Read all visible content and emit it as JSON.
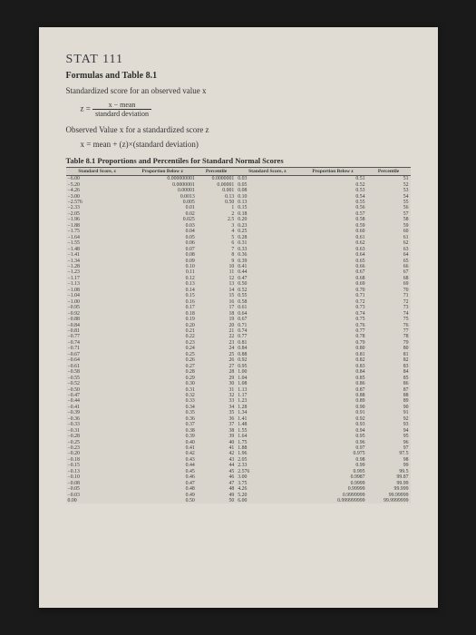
{
  "handwritten": "STAT  111",
  "title": "Formulas and Table 8.1",
  "line_std": "Standardized score for an observed value x",
  "formula1": {
    "lhs": "z =",
    "num": "x − mean",
    "den": "standard deviation"
  },
  "line_obs": "Observed Value x for a standardized score z",
  "formula2": "x = mean + (z)×(standard deviation)",
  "table_caption": "Table 8.1   Proportions and Percentiles for Standard Normal Scores",
  "headers": [
    "Standard Score, z",
    "Proportion Below z",
    "Percentile",
    "Standard Score, z",
    "Proportion Below z",
    "Percentile"
  ],
  "rows": [
    [
      "−6.00",
      "0.000000001",
      "0.0000001",
      "0.03",
      "0.51",
      "51"
    ],
    [
      "−5.20",
      "0.0000001",
      "0.00001",
      "0.05",
      "0.52",
      "52"
    ],
    [
      "−4.26",
      "0.00001",
      "0.001",
      "0.08",
      "0.53",
      "53"
    ],
    [
      "−3.00",
      "0.0013",
      "0.13",
      "0.10",
      "0.54",
      "54"
    ],
    [
      "−2.576",
      "0.005",
      "0.50",
      "0.13",
      "0.55",
      "55"
    ],
    [
      "−2.33",
      "0.01",
      "1",
      "0.15",
      "0.56",
      "56"
    ],
    [
      "−2.05",
      "0.02",
      "2",
      "0.18",
      "0.57",
      "57"
    ],
    [
      "−1.96",
      "0.025",
      "2.5",
      "0.20",
      "0.58",
      "58"
    ],
    [
      "−1.88",
      "0.03",
      "3",
      "0.23",
      "0.59",
      "59"
    ],
    [
      "−1.75",
      "0.04",
      "4",
      "0.25",
      "0.60",
      "60"
    ],
    [
      "−1.64",
      "0.05",
      "5",
      "0.28",
      "0.61",
      "61"
    ],
    [
      "−1.55",
      "0.06",
      "6",
      "0.31",
      "0.62",
      "62"
    ],
    [
      "−1.48",
      "0.07",
      "7",
      "0.33",
      "0.63",
      "63"
    ],
    [
      "−1.41",
      "0.08",
      "8",
      "0.36",
      "0.64",
      "64"
    ],
    [
      "−1.34",
      "0.09",
      "9",
      "0.39",
      "0.65",
      "65"
    ],
    [
      "−1.28",
      "0.10",
      "10",
      "0.41",
      "0.66",
      "66"
    ],
    [
      "−1.23",
      "0.11",
      "11",
      "0.44",
      "0.67",
      "67"
    ],
    [
      "−1.17",
      "0.12",
      "12",
      "0.47",
      "0.68",
      "68"
    ],
    [
      "−1.13",
      "0.13",
      "13",
      "0.50",
      "0.69",
      "69"
    ],
    [
      "−1.08",
      "0.14",
      "14",
      "0.52",
      "0.70",
      "70"
    ],
    [
      "−1.04",
      "0.15",
      "15",
      "0.55",
      "0.71",
      "71"
    ],
    [
      "−1.00",
      "0.16",
      "16",
      "0.58",
      "0.72",
      "72"
    ],
    [
      "−0.95",
      "0.17",
      "17",
      "0.61",
      "0.73",
      "73"
    ],
    [
      "−0.92",
      "0.18",
      "18",
      "0.64",
      "0.74",
      "74"
    ],
    [
      "−0.88",
      "0.19",
      "19",
      "0.67",
      "0.75",
      "75"
    ],
    [
      "−0.84",
      "0.20",
      "20",
      "0.71",
      "0.76",
      "76"
    ],
    [
      "−0.81",
      "0.21",
      "21",
      "0.74",
      "0.77",
      "77"
    ],
    [
      "−0.77",
      "0.22",
      "22",
      "0.77",
      "0.78",
      "78"
    ],
    [
      "−0.74",
      "0.23",
      "23",
      "0.81",
      "0.79",
      "79"
    ],
    [
      "−0.71",
      "0.24",
      "24",
      "0.84",
      "0.80",
      "80"
    ],
    [
      "−0.67",
      "0.25",
      "25",
      "0.88",
      "0.81",
      "81"
    ],
    [
      "−0.64",
      "0.26",
      "26",
      "0.92",
      "0.82",
      "82"
    ],
    [
      "−0.61",
      "0.27",
      "27",
      "0.95",
      "0.83",
      "83"
    ],
    [
      "−0.58",
      "0.28",
      "28",
      "1.00",
      "0.84",
      "84"
    ],
    [
      "−0.55",
      "0.29",
      "29",
      "1.04",
      "0.85",
      "85"
    ],
    [
      "−0.52",
      "0.30",
      "30",
      "1.08",
      "0.86",
      "86"
    ],
    [
      "−0.50",
      "0.31",
      "31",
      "1.13",
      "0.87",
      "87"
    ],
    [
      "−0.47",
      "0.32",
      "32",
      "1.17",
      "0.88",
      "88"
    ],
    [
      "−0.44",
      "0.33",
      "33",
      "1.23",
      "0.89",
      "89"
    ],
    [
      "−0.41",
      "0.34",
      "34",
      "1.28",
      "0.90",
      "90"
    ],
    [
      "−0.39",
      "0.35",
      "35",
      "1.34",
      "0.91",
      "91"
    ],
    [
      "−0.36",
      "0.36",
      "36",
      "1.41",
      "0.92",
      "92"
    ],
    [
      "−0.33",
      "0.37",
      "37",
      "1.48",
      "0.93",
      "93"
    ],
    [
      "−0.31",
      "0.38",
      "38",
      "1.55",
      "0.94",
      "94"
    ],
    [
      "−0.28",
      "0.39",
      "39",
      "1.64",
      "0.95",
      "95"
    ],
    [
      "−0.25",
      "0.40",
      "40",
      "1.75",
      "0.96",
      "96"
    ],
    [
      "−0.23",
      "0.41",
      "41",
      "1.88",
      "0.97",
      "97"
    ],
    [
      "−0.20",
      "0.42",
      "42",
      "1.96",
      "0.975",
      "97.5"
    ],
    [
      "−0.18",
      "0.43",
      "43",
      "2.05",
      "0.98",
      "98"
    ],
    [
      "−0.15",
      "0.44",
      "44",
      "2.33",
      "0.99",
      "99"
    ],
    [
      "−0.13",
      "0.45",
      "45",
      "2.576",
      "0.995",
      "99.5"
    ],
    [
      "−0.10",
      "0.46",
      "46",
      "3.00",
      "0.9987",
      "99.87"
    ],
    [
      "−0.08",
      "0.47",
      "47",
      "3.75",
      "0.9999",
      "99.99"
    ],
    [
      "−0.05",
      "0.48",
      "48",
      "4.26",
      "0.99999",
      "99.999"
    ],
    [
      "−0.03",
      "0.49",
      "49",
      "5.20",
      "0.9999999",
      "99.99999"
    ],
    [
      "0.00",
      "0.50",
      "50",
      "6.00",
      "0.999999999",
      "99.9999999"
    ]
  ]
}
